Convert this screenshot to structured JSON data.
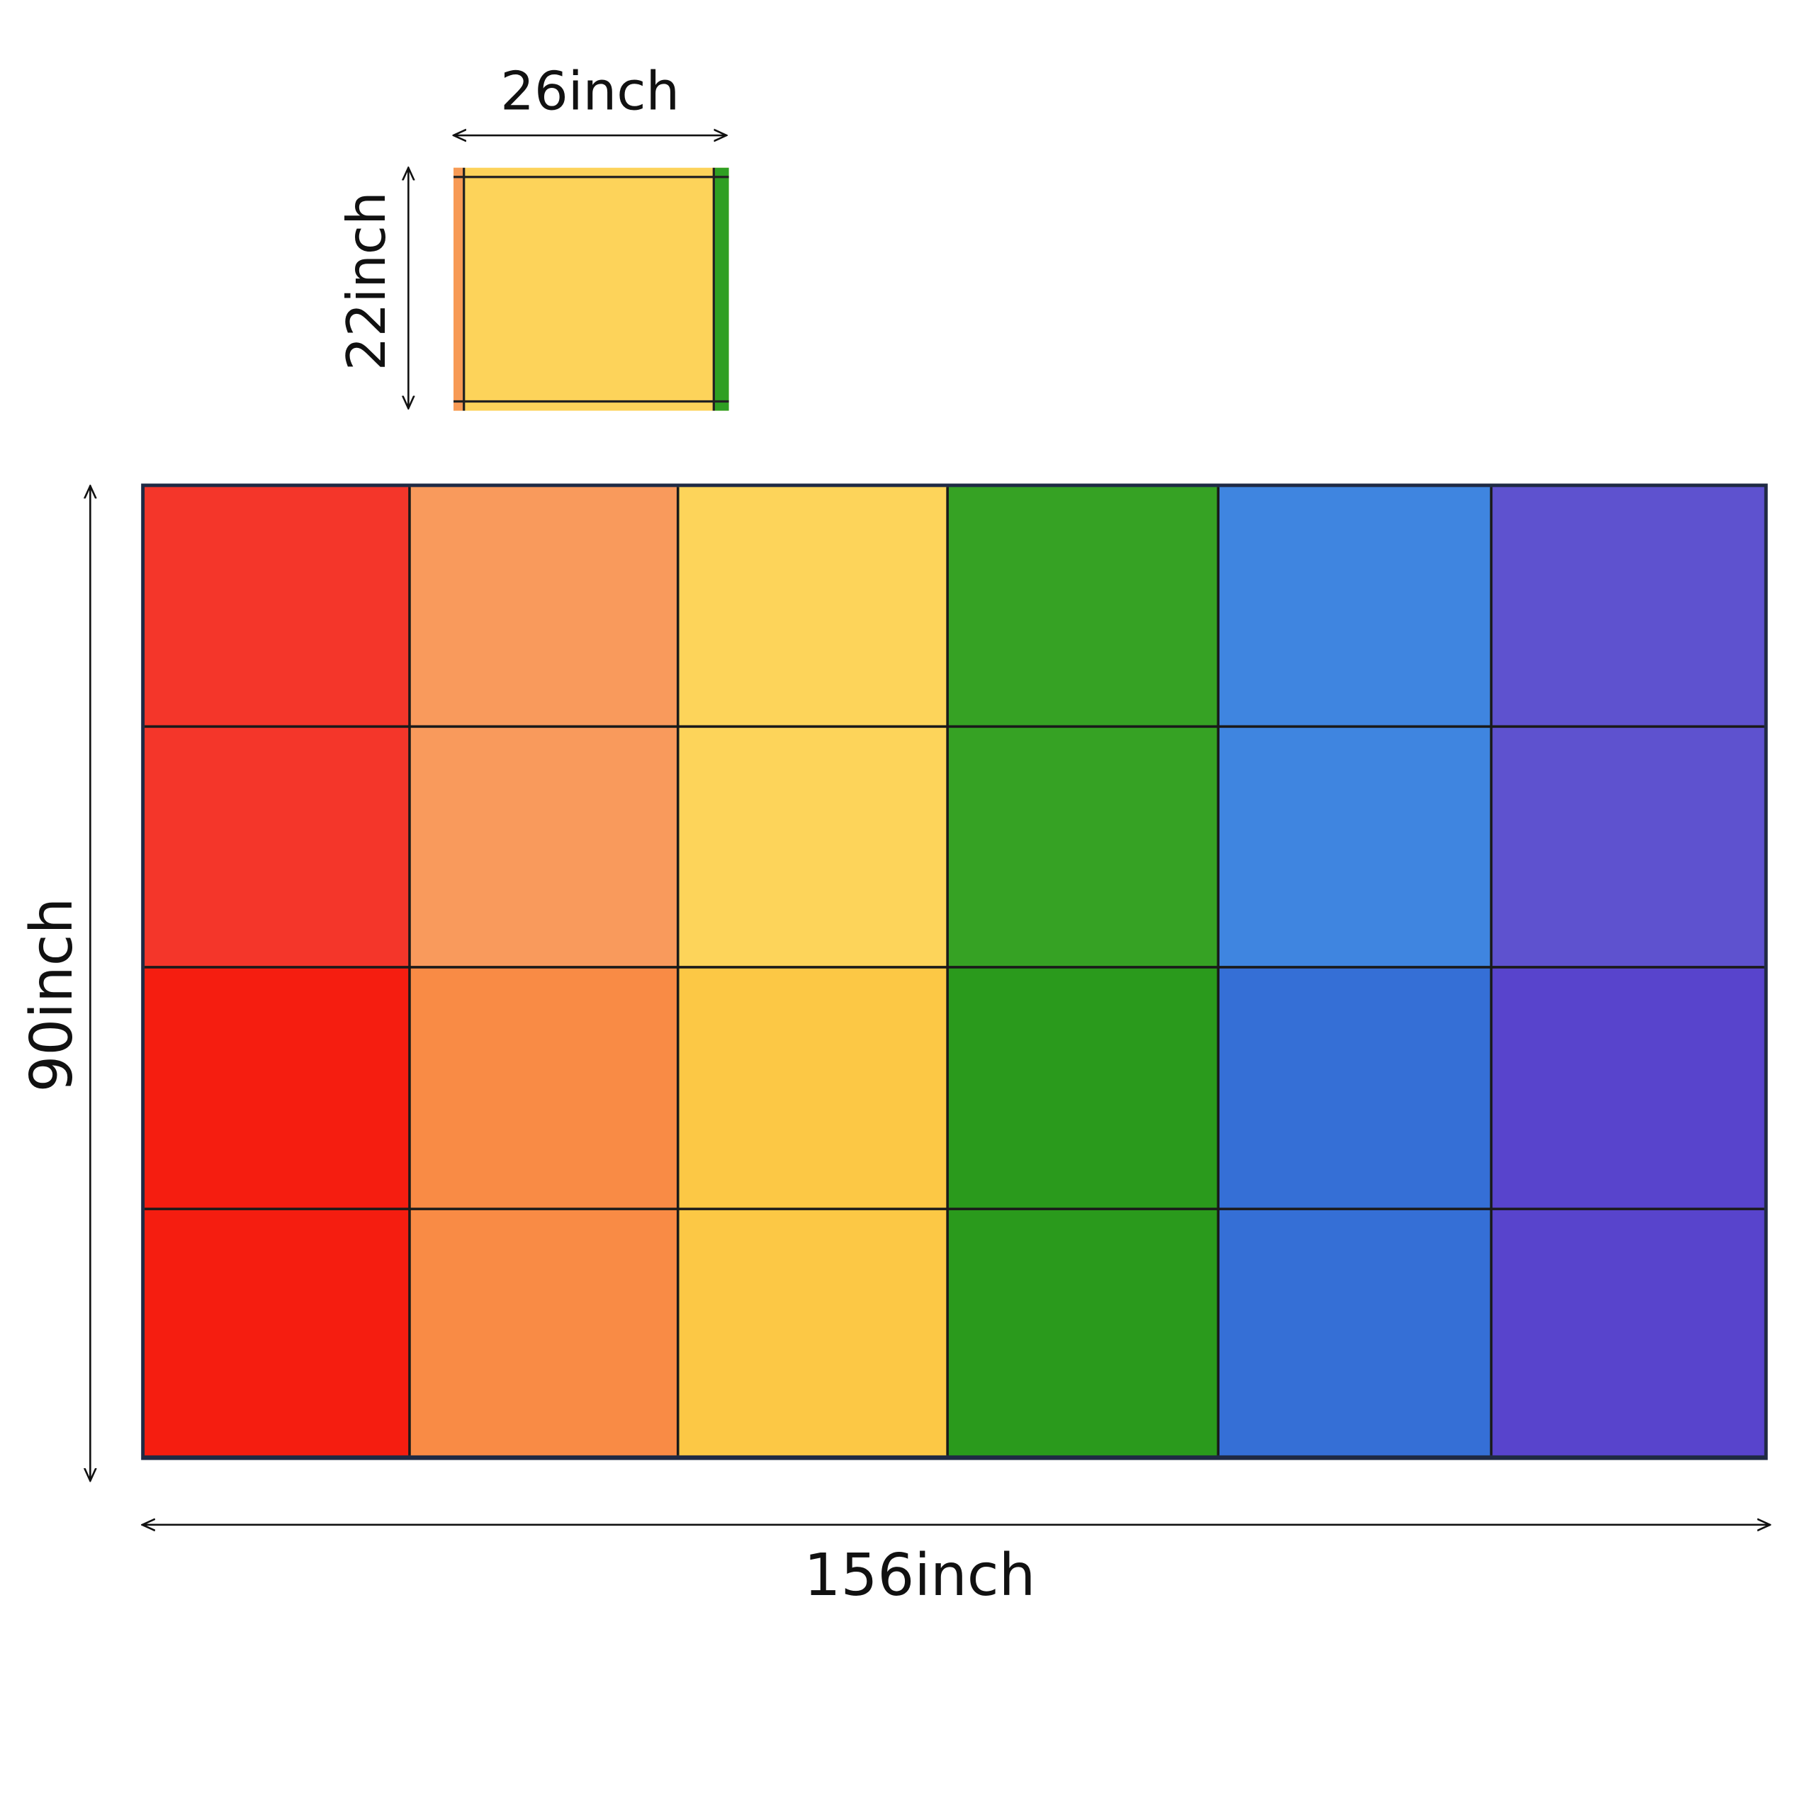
{
  "tile": {
    "width_label": "26inch",
    "height_label": "22inch"
  },
  "rug": {
    "height_label": "90inch",
    "width_label": "156inch"
  }
}
